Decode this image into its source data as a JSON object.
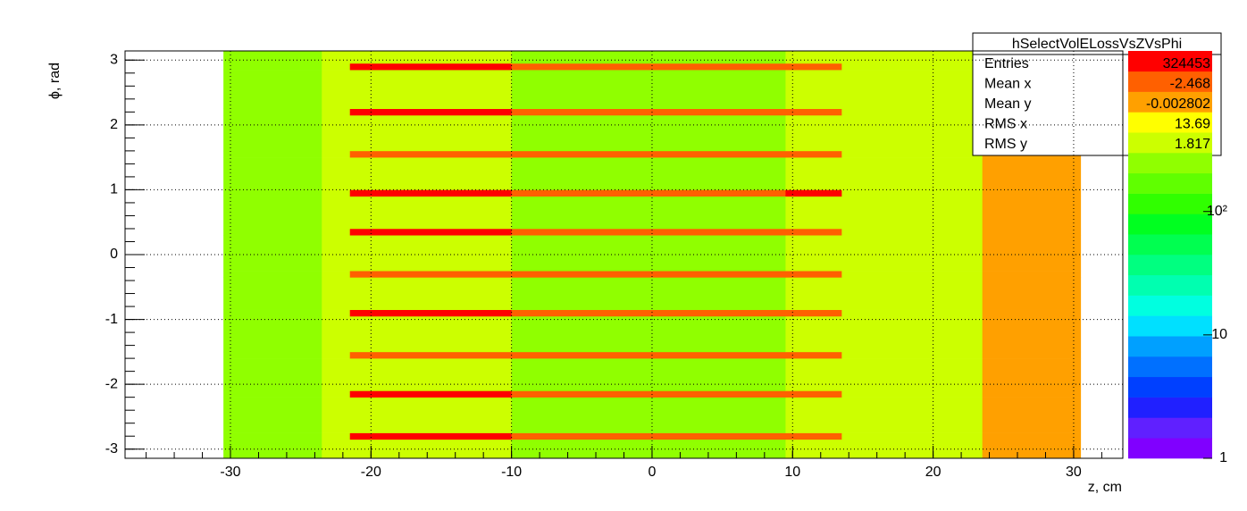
{
  "chart_data": {
    "type": "heatmap",
    "xlabel": "z, cm",
    "ylabel": "ϕ, rad",
    "xlim": [
      -37.5,
      33.5
    ],
    "ylim": [
      -3.1416,
      3.1416
    ],
    "xticks": [
      -30,
      -20,
      -10,
      0,
      10,
      20,
      30
    ],
    "yticks": [
      -3,
      -2,
      -1,
      0,
      1,
      2,
      3
    ],
    "grid": true,
    "zlim": [
      1,
      2000
    ],
    "zlog": true,
    "zticks": [
      1,
      10,
      {
        "value": 100,
        "label": "10²"
      }
    ],
    "palette": [
      "#8000ff",
      "#6020ff",
      "#2020ff",
      "#0040ff",
      "#0070ff",
      "#00a0ff",
      "#00e0ff",
      "#00ffe0",
      "#00ffb0",
      "#00ff80",
      "#00ff50",
      "#00ff20",
      "#30ff00",
      "#60ff00",
      "#90ff00",
      "#ccff00",
      "#ffff00",
      "#ffa000",
      "#ff6000",
      "#ff0000"
    ],
    "x_edges": [
      -30.5,
      -23.5,
      -21.5,
      -10,
      9.5,
      13.5,
      23.5,
      30.5
    ],
    "y_edges": [
      -3.1416,
      -2.85,
      -2.75,
      -2.2,
      -2.1,
      -1.6,
      -1.5,
      -0.95,
      -0.85,
      -0.35,
      -0.25,
      0.3,
      0.4,
      0.9,
      1.0,
      1.5,
      1.6,
      2.15,
      2.25,
      2.85,
      2.95,
      3.1416
    ],
    "values": [
      [
        250,
        400,
        400,
        250,
        400,
        400,
        800
      ],
      [
        250,
        400,
        1800,
        1200,
        1200,
        400,
        800
      ],
      [
        250,
        400,
        400,
        250,
        400,
        400,
        800
      ],
      [
        250,
        400,
        1800,
        1200,
        1200,
        400,
        800
      ],
      [
        250,
        400,
        400,
        250,
        400,
        400,
        800
      ],
      [
        250,
        400,
        1200,
        1200,
        1200,
        400,
        800
      ],
      [
        250,
        400,
        400,
        250,
        400,
        400,
        800
      ],
      [
        250,
        400,
        1800,
        1200,
        1200,
        400,
        800
      ],
      [
        250,
        400,
        400,
        250,
        400,
        400,
        800
      ],
      [
        250,
        400,
        1200,
        1200,
        1200,
        400,
        800
      ],
      [
        250,
        400,
        400,
        250,
        400,
        400,
        800
      ],
      [
        250,
        400,
        1800,
        1200,
        1200,
        400,
        800
      ],
      [
        250,
        400,
        400,
        250,
        400,
        400,
        800
      ],
      [
        250,
        400,
        1800,
        1200,
        1800,
        400,
        800
      ],
      [
        250,
        400,
        400,
        250,
        400,
        400,
        800
      ],
      [
        250,
        400,
        1200,
        1200,
        1200,
        400,
        800
      ],
      [
        250,
        400,
        400,
        250,
        400,
        400,
        800
      ],
      [
        250,
        400,
        1800,
        1200,
        1200,
        400,
        800
      ],
      [
        250,
        400,
        400,
        250,
        400,
        400,
        800
      ],
      [
        250,
        400,
        1800,
        1200,
        1200,
        400,
        800
      ],
      [
        250,
        400,
        400,
        250,
        400,
        400,
        800
      ]
    ],
    "stats": {
      "title": "hSelectVolELossVsZVsPhi",
      "rows": [
        [
          "Entries",
          324453
        ],
        [
          "Mean x",
          -2.468
        ],
        [
          "Mean y",
          -0.002802
        ],
        [
          "RMS x",
          13.69
        ],
        [
          "RMS y",
          1.817
        ]
      ]
    }
  }
}
